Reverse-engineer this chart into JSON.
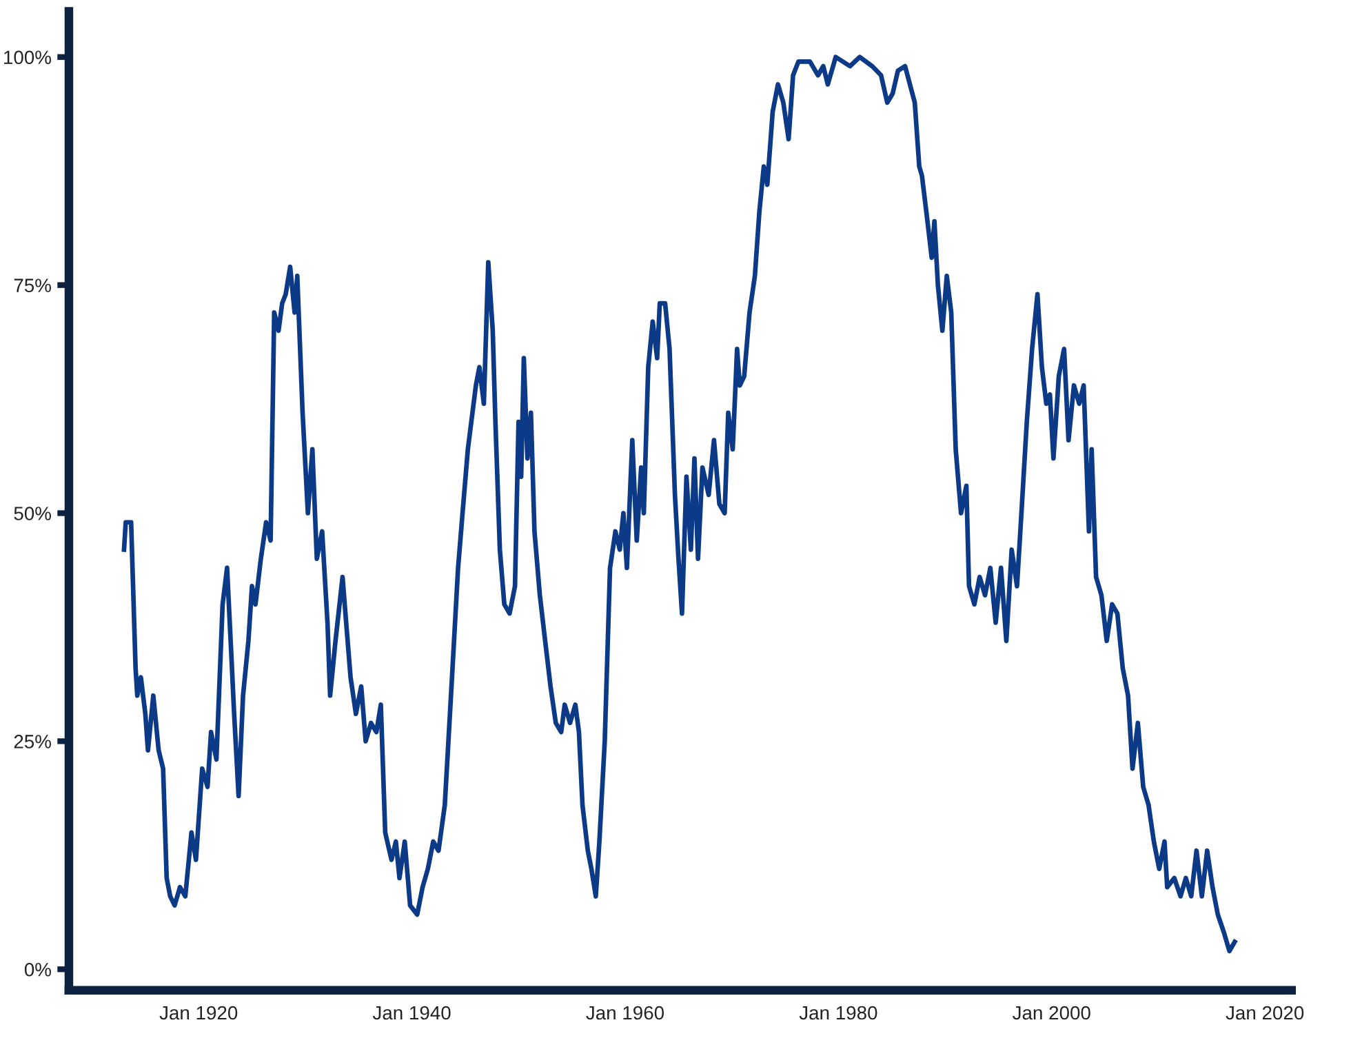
{
  "chart_data": {
    "type": "line",
    "x": [
      "1913-01",
      "1913-03",
      "1913-09",
      "1914-02",
      "1914-04",
      "1914-08",
      "1915-01",
      "1915-04",
      "1915-10",
      "1916-04",
      "1916-09",
      "1917-01",
      "1917-05",
      "1917-10",
      "1918-04",
      "1918-10",
      "1919-05",
      "1919-10",
      "1920-05",
      "1920-11",
      "1921-03",
      "1921-09",
      "1922-04",
      "1922-09",
      "1923-02",
      "1923-05",
      "1923-10",
      "1924-03",
      "1924-09",
      "1925-01",
      "1925-05",
      "1925-11",
      "1926-05",
      "1926-10",
      "1927-02",
      "1927-07",
      "1927-11",
      "1928-03",
      "1928-08",
      "1929-01",
      "1929-04",
      "1929-10",
      "1930-04",
      "1930-09",
      "1931-02",
      "1931-08",
      "1932-02",
      "1932-05",
      "1932-11",
      "1933-07",
      "1933-11",
      "1934-04",
      "1934-10",
      "1935-04",
      "1935-09",
      "1936-03",
      "1936-09",
      "1937-02",
      "1937-07",
      "1938-02",
      "1938-07",
      "1938-11",
      "1939-05",
      "1939-11",
      "1940-07",
      "1941-01",
      "1941-07",
      "1942-01",
      "1942-07",
      "1943-02",
      "1943-09",
      "1944-05",
      "1944-10",
      "1945-04",
      "1946-01",
      "1946-05",
      "1946-10",
      "1947-03",
      "1947-08",
      "1947-11",
      "1948-04",
      "1948-09",
      "1949-03",
      "1949-09",
      "1950-01",
      "1950-04",
      "1950-07",
      "1950-11",
      "1951-03",
      "1951-07",
      "1952-01",
      "1952-07",
      "1953-01",
      "1953-07",
      "1954-01",
      "1954-05",
      "1954-11",
      "1955-05",
      "1955-09",
      "1956-01",
      "1956-07",
      "1956-11",
      "1957-04",
      "1957-08",
      "1958-02",
      "1958-08",
      "1959-02",
      "1959-07",
      "1959-11",
      "1960-03",
      "1960-09",
      "1961-02",
      "1961-07",
      "1961-10",
      "1962-03",
      "1962-08",
      "1963-01",
      "1963-04",
      "1963-10",
      "1964-03",
      "1964-09",
      "1965-01",
      "1965-05",
      "1965-10",
      "1966-03",
      "1966-07",
      "1966-11",
      "1967-04",
      "1967-11",
      "1968-05",
      "1968-11",
      "1969-05",
      "1969-09",
      "1970-02",
      "1970-07",
      "1970-10",
      "1971-03",
      "1971-09",
      "1972-03",
      "1972-08",
      "1973-01",
      "1973-05",
      "1973-11",
      "1974-05",
      "1974-11",
      "1975-05",
      "1975-10",
      "1976-04",
      "1977-05",
      "1978-02",
      "1978-08",
      "1979-01",
      "1979-10",
      "1981-02",
      "1982-01",
      "1983-03",
      "1984-01",
      "1984-08",
      "1985-02",
      "1985-08",
      "1986-04",
      "1987-03",
      "1987-08",
      "1987-11",
      "1988-04",
      "1988-10",
      "1989-01",
      "1989-05",
      "1989-10",
      "1990-03",
      "1990-08",
      "1991-01",
      "1991-07",
      "1992-01",
      "1992-04",
      "1992-10",
      "1993-04",
      "1993-10",
      "1994-04",
      "1994-10",
      "1995-04",
      "1995-10",
      "1996-04",
      "1996-10",
      "1997-03",
      "1997-09",
      "1998-03",
      "1998-09",
      "1999-02",
      "1999-07",
      "1999-11",
      "2000-03",
      "2000-09",
      "2001-03",
      "2001-08",
      "2002-02",
      "2002-08",
      "2003-01",
      "2003-07",
      "2003-10",
      "2004-03",
      "2004-09",
      "2005-03",
      "2005-09",
      "2006-03",
      "2006-09",
      "2007-03",
      "2007-08",
      "2008-02",
      "2008-08",
      "2009-02",
      "2009-08",
      "2010-02",
      "2010-08",
      "2010-11",
      "2011-07",
      "2012-02",
      "2012-08",
      "2013-02",
      "2013-08",
      "2014-02",
      "2014-08",
      "2015-02",
      "2015-08",
      "2016-03",
      "2016-09",
      "2017-03"
    ],
    "series": [
      {
        "color": "#0d3a86",
        "values": [
          46,
          49,
          49,
          33,
          30,
          32,
          28,
          24,
          30,
          24,
          22,
          10,
          8,
          7,
          9,
          8,
          15,
          12,
          22,
          20,
          26,
          23,
          40,
          44,
          34,
          28,
          19,
          30,
          36,
          42,
          40,
          45,
          49,
          47,
          72,
          70,
          73,
          74,
          77,
          72,
          76,
          61,
          50,
          57,
          45,
          48,
          38,
          30,
          36,
          43,
          38,
          32,
          28,
          31,
          25,
          27,
          26,
          29,
          15,
          12,
          14,
          10,
          14,
          7,
          6,
          9,
          11,
          14,
          13,
          18,
          30,
          44,
          50,
          57,
          64,
          66,
          62,
          77.5,
          70,
          60,
          46,
          40,
          39,
          42,
          60,
          54,
          67,
          56,
          61,
          48,
          41,
          36,
          31,
          27,
          26,
          29,
          27,
          29,
          26,
          18,
          13,
          11,
          8,
          14,
          25,
          44,
          48,
          46,
          50,
          44,
          58,
          47,
          55,
          50,
          66,
          71,
          67,
          73,
          73,
          68,
          52,
          45,
          39,
          54,
          46,
          56,
          45,
          55,
          52,
          58,
          51,
          50,
          61,
          57,
          68,
          64,
          65,
          72,
          76,
          83,
          88,
          86,
          94,
          97,
          95,
          91,
          98,
          99.5,
          99.5,
          98,
          99,
          97,
          100,
          99,
          100,
          99,
          98,
          95,
          96,
          98.5,
          99,
          95,
          88,
          87,
          83,
          78,
          82,
          75,
          70,
          76,
          72,
          57,
          50,
          53,
          42,
          40,
          43,
          41,
          44,
          38,
          44,
          36,
          46,
          42,
          50,
          60,
          68,
          74,
          66,
          62,
          63,
          56,
          65,
          68,
          58,
          64,
          62,
          64,
          48,
          57,
          43,
          41,
          36,
          40,
          39,
          33,
          30,
          22,
          27,
          20,
          18,
          14,
          11,
          14,
          9,
          10,
          8,
          10,
          8,
          13,
          8,
          13,
          9,
          6,
          4,
          2,
          3
        ]
      }
    ],
    "xlim": [
      "1907-11",
      "2022-07"
    ],
    "xticks": [
      {
        "value": "1920-01",
        "label": "Jan 1920"
      },
      {
        "value": "1940-01",
        "label": "Jan 1940"
      },
      {
        "value": "1960-01",
        "label": "Jan 1960"
      },
      {
        "value": "1980-01",
        "label": "Jan 1980"
      },
      {
        "value": "2000-01",
        "label": "Jan 2000"
      },
      {
        "value": "2020-01",
        "label": "Jan 2020"
      }
    ],
    "ylim": [
      -2.3,
      105
    ],
    "yticks": [
      {
        "value": 0,
        "label": "0%"
      },
      {
        "value": 25,
        "label": "25%"
      },
      {
        "value": 50,
        "label": "50%"
      },
      {
        "value": 75,
        "label": "75%"
      },
      {
        "value": 100,
        "label": "100%"
      }
    ],
    "grid": false,
    "legend": false,
    "line_style": "solid"
  }
}
